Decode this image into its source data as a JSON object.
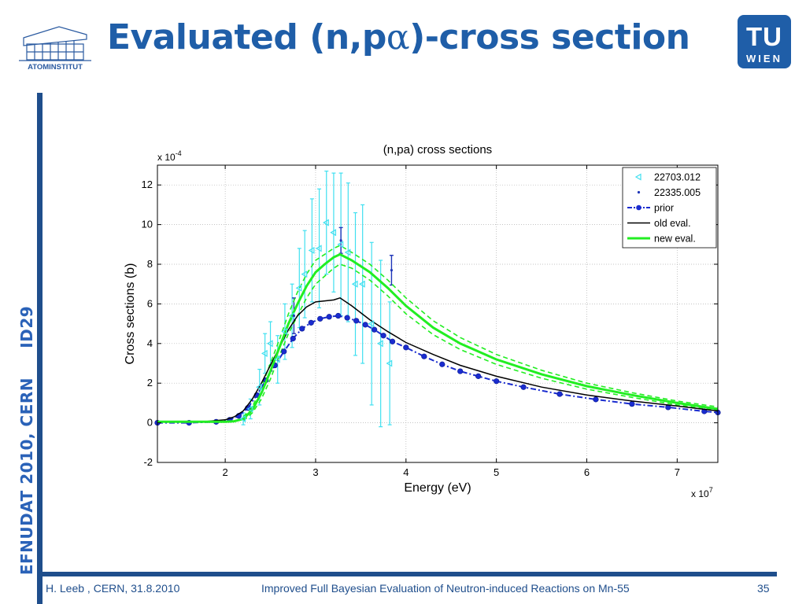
{
  "slide": {
    "title_pre": "Evaluated (n,p",
    "title_alpha": "α",
    "title_post": ")-cross section",
    "left_logo_text": "ATOMINSTITUT",
    "right_logo_top": "TU",
    "right_logo_bottom": "WIEN",
    "side_text": "EFNUDAT 2010, CERN     ID29",
    "footer_left": "H. Leeb , CERN, 31.8.2010",
    "footer_center": "Improved Full Bayesian Evaluation of Neutron-induced Reactions on Mn-55",
    "page_number": "35"
  },
  "chart_data": {
    "type": "line",
    "title": "(n,pa) cross sections",
    "xlabel": "Energy (eV)",
    "ylabel": "Cross sections (b)",
    "x_multiplier": "x 10",
    "x_multiplier_exp": "7",
    "y_multiplier": "x 10",
    "y_multiplier_exp": "-4",
    "xlim": [
      1.25,
      7.45
    ],
    "ylim": [
      -2,
      13
    ],
    "x_ticks": [
      2,
      3,
      4,
      5,
      6,
      7
    ],
    "y_ticks": [
      -2,
      0,
      2,
      4,
      6,
      8,
      10,
      12
    ],
    "grid": true,
    "legend_position": "top-right",
    "colors": {
      "exp1": "#40e0f0",
      "exp2": "#1e35b8",
      "prior": "#1a2ccf",
      "old": "#000000",
      "new": "#22ee22",
      "axis": "#000000",
      "grid": "#b0b0b0"
    },
    "series": [
      {
        "name": "22703.012",
        "style": "triangle-errorbar",
        "x": [
          2.2,
          2.28,
          2.38,
          2.44,
          2.5,
          2.58,
          2.66,
          2.74,
          2.82,
          2.88,
          2.96,
          3.04,
          3.12,
          3.2,
          3.28,
          3.36,
          3.44,
          3.52,
          3.62,
          3.72,
          3.82
        ],
        "y": [
          0.2,
          0.7,
          1.8,
          3.5,
          4.0,
          3.2,
          4.6,
          5.4,
          6.8,
          7.5,
          8.7,
          8.8,
          10.1,
          9.6,
          9.0,
          8.6,
          7.0,
          7.0,
          5.0,
          4.0,
          3.0
        ],
        "err": [
          0.3,
          0.5,
          0.9,
          1.0,
          1.1,
          1.2,
          1.4,
          1.6,
          2.0,
          2.2,
          2.6,
          3.0,
          2.6,
          3.0,
          3.6,
          3.5,
          3.6,
          4.0,
          4.1,
          4.2,
          3.1
        ]
      },
      {
        "name": "22335.005",
        "style": "point-errorbar",
        "x": [
          2.76,
          3.28,
          3.84
        ],
        "y": [
          5.4,
          9.2,
          7.7
        ],
        "err": [
          0.9,
          0.65,
          0.75
        ]
      },
      {
        "name": "prior",
        "style": "dashdot-marker",
        "x": [
          1.25,
          1.6,
          1.9,
          2.05,
          2.15,
          2.25,
          2.35,
          2.45,
          2.55,
          2.65,
          2.75,
          2.85,
          2.95,
          3.05,
          3.15,
          3.25,
          3.35,
          3.45,
          3.55,
          3.65,
          3.75,
          3.85,
          4.0,
          4.2,
          4.4,
          4.6,
          4.8,
          5.0,
          5.3,
          5.7,
          6.1,
          6.5,
          6.9,
          7.3,
          7.45
        ],
        "y": [
          0.0,
          0.0,
          0.05,
          0.15,
          0.35,
          0.75,
          1.4,
          2.15,
          2.9,
          3.6,
          4.25,
          4.75,
          5.05,
          5.25,
          5.35,
          5.4,
          5.3,
          5.15,
          4.95,
          4.7,
          4.4,
          4.1,
          3.8,
          3.35,
          2.95,
          2.6,
          2.35,
          2.1,
          1.8,
          1.45,
          1.18,
          0.95,
          0.78,
          0.58,
          0.52
        ]
      },
      {
        "name": "old eval.",
        "style": "solid-thin",
        "x": [
          1.25,
          1.8,
          2.0,
          2.1,
          2.2,
          2.3,
          2.4,
          2.5,
          2.6,
          2.7,
          2.8,
          2.9,
          3.0,
          3.1,
          3.2,
          3.27,
          3.4,
          3.6,
          3.8,
          4.0,
          4.3,
          4.6,
          5.0,
          5.5,
          6.0,
          6.5,
          7.0,
          7.45
        ],
        "y": [
          0.05,
          0.07,
          0.15,
          0.3,
          0.6,
          1.2,
          2.0,
          2.9,
          3.8,
          4.7,
          5.4,
          5.85,
          6.1,
          6.15,
          6.2,
          6.3,
          5.9,
          5.2,
          4.6,
          4.05,
          3.45,
          2.9,
          2.35,
          1.8,
          1.4,
          1.1,
          0.85,
          0.6
        ]
      },
      {
        "name": "new eval.",
        "style": "solid-thick",
        "x": [
          1.25,
          1.8,
          2.0,
          2.1,
          2.2,
          2.3,
          2.4,
          2.5,
          2.6,
          2.7,
          2.8,
          2.9,
          3.0,
          3.1,
          3.2,
          3.27,
          3.4,
          3.6,
          3.8,
          4.0,
          4.3,
          4.6,
          5.0,
          5.5,
          6.0,
          6.5,
          7.0,
          7.45
        ],
        "y": [
          0.05,
          0.05,
          0.05,
          0.08,
          0.2,
          0.65,
          1.5,
          2.6,
          3.8,
          5.0,
          6.0,
          6.9,
          7.6,
          8.0,
          8.35,
          8.5,
          8.2,
          7.6,
          6.8,
          5.9,
          4.8,
          4.0,
          3.2,
          2.45,
          1.85,
          1.4,
          1.0,
          0.7
        ]
      },
      {
        "name": "new eval. upper band",
        "style": "dashed-band",
        "x": [
          2.2,
          2.3,
          2.4,
          2.5,
          2.6,
          2.7,
          2.8,
          2.9,
          3.0,
          3.1,
          3.2,
          3.27,
          3.4,
          3.6,
          3.8,
          4.0,
          4.3,
          4.6,
          5.0,
          5.5,
          6.0,
          6.5,
          7.0,
          7.45
        ],
        "y": [
          0.3,
          0.8,
          1.8,
          3.0,
          4.2,
          5.5,
          6.6,
          7.5,
          8.2,
          8.5,
          8.8,
          8.95,
          8.6,
          8.0,
          7.2,
          6.3,
          5.15,
          4.3,
          3.45,
          2.65,
          2.0,
          1.52,
          1.1,
          0.8
        ]
      },
      {
        "name": "new eval. lower band",
        "style": "dashed-band",
        "x": [
          2.2,
          2.3,
          2.4,
          2.5,
          2.6,
          2.7,
          2.8,
          2.9,
          3.0,
          3.1,
          3.2,
          3.27,
          3.4,
          3.6,
          3.8,
          4.0,
          4.3,
          4.6,
          5.0,
          5.5,
          6.0,
          6.5,
          7.0,
          7.45
        ],
        "y": [
          0.1,
          0.5,
          1.2,
          2.2,
          3.4,
          4.5,
          5.4,
          6.3,
          7.0,
          7.4,
          7.8,
          8.0,
          7.8,
          7.2,
          6.4,
          5.5,
          4.45,
          3.7,
          2.95,
          2.25,
          1.7,
          1.28,
          0.9,
          0.62
        ]
      }
    ],
    "legend": [
      "22703.012",
      "22335.005",
      "prior",
      "old eval.",
      "new eval."
    ]
  }
}
